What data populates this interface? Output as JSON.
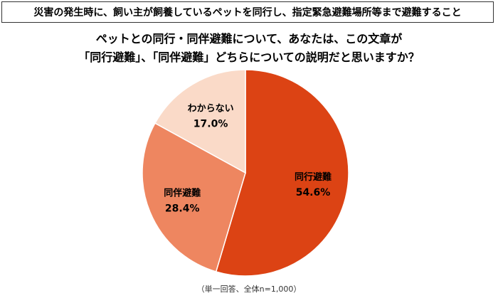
{
  "statement": "災害の発生時に、飼い主が飼養しているペットを同行し、指定緊急避難場所等まで避難すること",
  "question": {
    "line1": "ペットとの同行・同伴避難について、あなたは、この文章が",
    "line2": "「同行避難」、「同伴避難」どちらについての説明だと思いますか？"
  },
  "chart_data": {
    "type": "pie",
    "title": "",
    "slices": [
      {
        "label": "同行避難",
        "value": 54.6,
        "display": "54.6%",
        "color": "#dc4314"
      },
      {
        "label": "同伴避難",
        "value": 28.4,
        "display": "28.4%",
        "color": "#ee8660"
      },
      {
        "label": "わからない",
        "value": 17.0,
        "display": "17.0%",
        "color": "#fadac8"
      }
    ],
    "start": "12 o'clock",
    "direction": "clockwise",
    "legend": "none",
    "labels": "inside slices"
  },
  "note": "（単一回答、全体n=1,000）"
}
